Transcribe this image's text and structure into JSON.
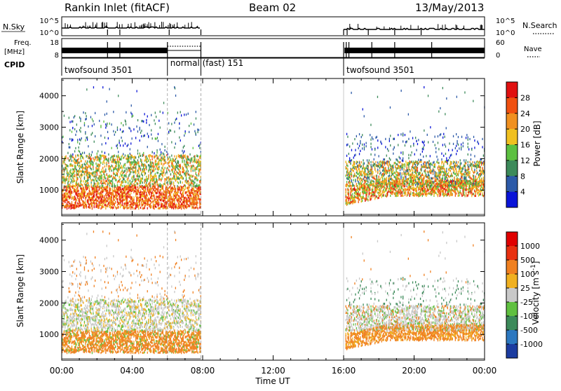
{
  "header": {
    "station": "Rankin Inlet (fitACF)",
    "beam": "Beam 02",
    "date": "13/May/2013"
  },
  "noise_panel": {
    "left_label": "N.Sky",
    "left_ticks": [
      "10^5",
      "10^0"
    ],
    "right_ticks": [
      "10^5",
      "10^0"
    ],
    "right_label": "N.Search"
  },
  "freq_panel": {
    "left_label_1": "Freq.",
    "left_label_2": "[MHz]",
    "left_ticks": [
      "18",
      "8"
    ],
    "right_ticks": [
      "60",
      "0"
    ],
    "right_label": "Nave"
  },
  "cpid": {
    "label": "CPID",
    "segments": [
      {
        "name": "twofsound 3501",
        "start": 0,
        "end": 6
      },
      {
        "name": "normal (fast) 151",
        "start": 6,
        "end": 7.9
      },
      {
        "name": "twofsound 3501",
        "start": 16,
        "end": 24
      }
    ]
  },
  "time_axis": {
    "ticks": [
      "00:00",
      "04:00",
      "08:00",
      "12:00",
      "16:00",
      "20:00",
      "00:00"
    ],
    "label": "Time UT"
  },
  "chart_data": [
    {
      "type": "heatmap",
      "ylabel": "Slant Range [km]",
      "yticks": [
        "1000",
        "2000",
        "3000",
        "4000"
      ],
      "ylim": [
        180,
        4550
      ],
      "xlim": [
        0,
        24
      ],
      "colorbar": {
        "label": "Power [dB]",
        "ticks": [
          "4",
          "8",
          "12",
          "16",
          "20",
          "24",
          "28"
        ],
        "range": [
          0,
          32
        ],
        "colors": [
          "#0a14d8",
          "#2c5aa8",
          "#3c8a5a",
          "#5cc040",
          "#f0c020",
          "#f09020",
          "#f05010",
          "#e01010"
        ]
      },
      "data_gaps_utc": [
        [
          7.9,
          16.0
        ]
      ]
    },
    {
      "type": "heatmap",
      "ylabel": "Slant Range [km]",
      "yticks": [
        "1000",
        "2000",
        "3000",
        "4000"
      ],
      "ylim": [
        180,
        4550
      ],
      "xlim": [
        0,
        24
      ],
      "colorbar": {
        "label": "Velocity [m s^-1]",
        "ticks": [
          "1000",
          "500",
          "100",
          "25",
          "-25",
          "-100",
          "-500",
          "-1000"
        ],
        "colors": [
          "#1c3ca0",
          "#2c78c0",
          "#3c8a5a",
          "#60c040",
          "#c8c8c8",
          "#f0b020",
          "#f08020",
          "#e83010",
          "#e00000"
        ]
      },
      "data_gaps_utc": [
        [
          7.9,
          16.0
        ]
      ]
    }
  ]
}
